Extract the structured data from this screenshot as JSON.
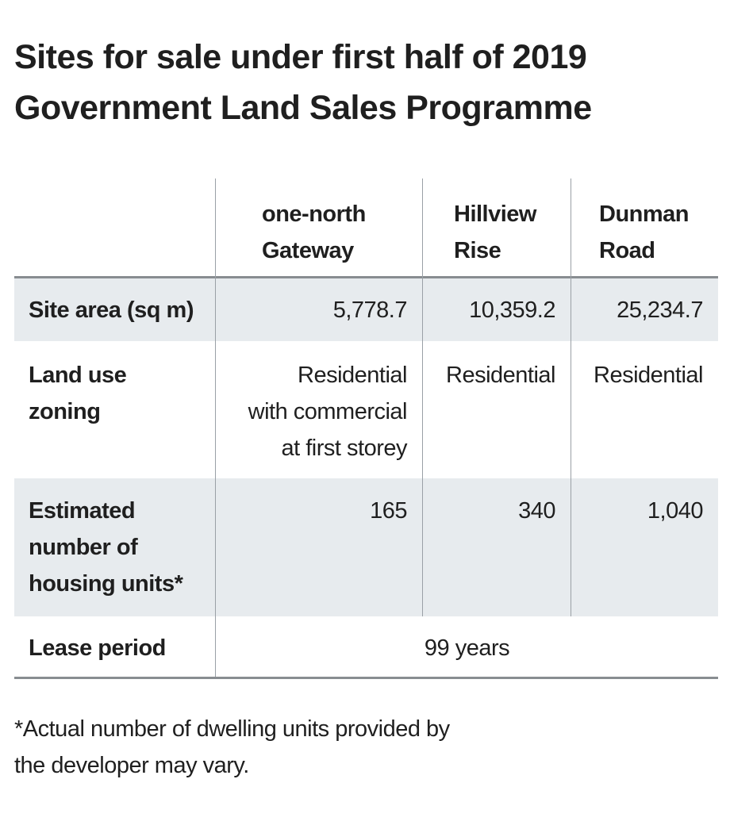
{
  "title": {
    "line1": "Sites for sale under first half of 2019",
    "line2": "Government Land Sales Programme"
  },
  "table": {
    "columns": [
      {
        "line1": "one-north",
        "line2": "Gateway"
      },
      {
        "line1": "Hillview",
        "line2": "Rise"
      },
      {
        "line1": "Dunman",
        "line2": "Road"
      }
    ],
    "rows": {
      "site_area": {
        "label": "Site area (sq m)",
        "values": [
          "5,778.7",
          "10,359.2",
          "25,234.7"
        ]
      },
      "land_use": {
        "label_line1": "Land use",
        "label_line2": "zoning",
        "col1_lines": [
          "Residential",
          "with commercial",
          "at first storey"
        ],
        "col2": "Residential",
        "col3": "Residential"
      },
      "housing_units": {
        "label_lines": [
          "Estimated",
          "number of",
          "housing units*"
        ],
        "values": [
          "165",
          "340",
          "1,040"
        ]
      },
      "lease": {
        "label": "Lease period",
        "value": "99 years"
      }
    }
  },
  "footnote": {
    "line1": "*Actual number of dwelling units provided by",
    "line2": "the developer may vary."
  }
}
